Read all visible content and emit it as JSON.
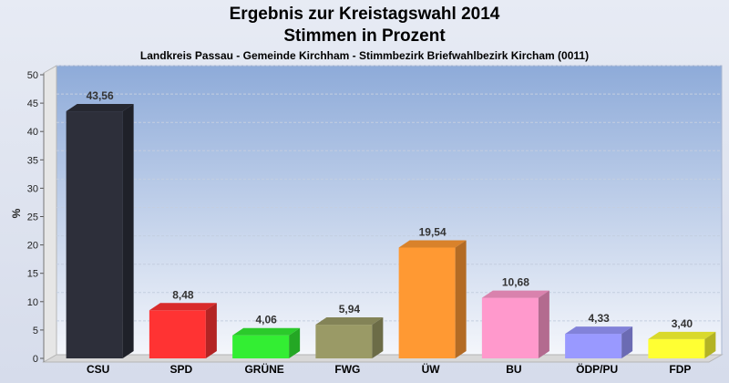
{
  "chart_data": {
    "type": "bar",
    "title": "Ergebnis zur Kreistagswahl 2014",
    "title_line2": "Stimmen in Prozent",
    "subtitle": "Landkreis Passau - Gemeinde Kirchham - Stimmbezirk Briefwahlbezirk Kircham (0011)",
    "ylabel": "%",
    "ylim": [
      0,
      50
    ],
    "yticks": [
      "0",
      "5",
      "10",
      "15",
      "20",
      "25",
      "30",
      "35",
      "40",
      "45",
      "50"
    ],
    "categories": [
      "CSU",
      "SPD",
      "GRÜNE",
      "FWG",
      "ÜW",
      "BU",
      "ÖDP/PU",
      "FDP"
    ],
    "values": [
      43.56,
      8.48,
      4.06,
      5.94,
      19.54,
      10.68,
      4.33,
      3.4
    ],
    "labels": [
      "43,56",
      "8,48",
      "4,06",
      "5,94",
      "19,54",
      "10,68",
      "4,33",
      "3,40"
    ],
    "colors": [
      "#2d2f3a",
      "#ff3333",
      "#33ee33",
      "#9a9a66",
      "#ff9933",
      "#ff99cc",
      "#9999ff",
      "#ffff33"
    ],
    "grid": true
  }
}
